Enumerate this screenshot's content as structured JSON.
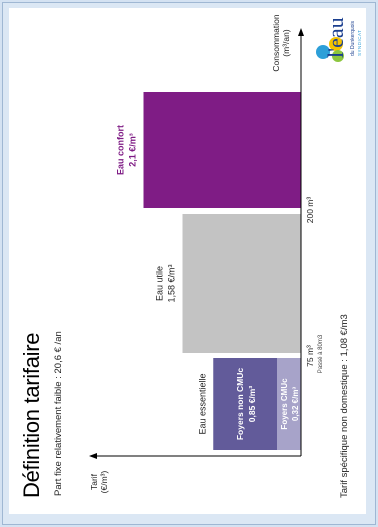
{
  "title": "Définition tarifaire",
  "subtitle": "Part fixe relativement faible : 20,6 € /an",
  "footer": "Tarif spécifique non domestique : 1,08 €/m3",
  "logo": {
    "text": "l'eau",
    "line1": "du Dunkerquois",
    "line2": "SYNDICAT",
    "colors": [
      "#2d9fd8",
      "#f5c400",
      "#8cc63e",
      "#1b3f8f"
    ]
  },
  "chart_data": {
    "type": "bar",
    "ylabel": "Tarif\n(€/m³)",
    "xlabel": "Consommation\n(m³/an)",
    "x_ticks": [
      {
        "value": 75,
        "label": "75 m³"
      },
      {
        "value": 200,
        "label": "200 m³"
      }
    ],
    "x_tick_note": "Passé à 80m3",
    "tiers": [
      {
        "name": "Eau essentielle",
        "range": [
          0,
          75
        ],
        "segments": [
          {
            "label": "Foyers non CMUc",
            "price_label": "0,85 €/m³",
            "value": 0.85,
            "color": "#625b9a"
          },
          {
            "label": "Foyers CMUc",
            "price_label": "0,32 €/m³",
            "value": 0.32,
            "color": "#a7a3c9"
          }
        ]
      },
      {
        "name": "Eau utile",
        "price_label": "1,58 €/m³",
        "value": 1.58,
        "range": [
          75,
          200
        ],
        "color": "#c3c3c3"
      },
      {
        "name": "Eau confort",
        "price_label": "2,1 €/m³",
        "value": 2.1,
        "range": [
          200,
          300
        ],
        "color": "#7f1c85"
      }
    ],
    "colors": {
      "axis": "#000000",
      "confort_text": "#7f1c85"
    }
  }
}
